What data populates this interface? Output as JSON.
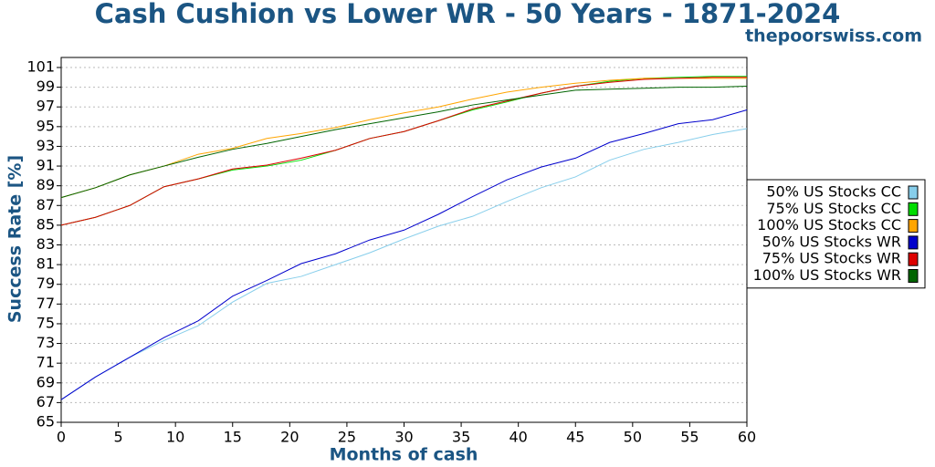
{
  "chart_data": {
    "type": "line",
    "title": "Cash Cushion vs Lower WR - 50 Years - 1871-2024",
    "subtitle": "thepoorswiss.com",
    "x_label": "Months of cash",
    "y_label": "Success Rate [%]",
    "x": [
      0,
      3,
      6,
      9,
      12,
      15,
      18,
      21,
      24,
      27,
      30,
      33,
      36,
      39,
      42,
      45,
      48,
      51,
      54,
      57,
      60
    ],
    "series": [
      {
        "name": "50% US Stocks CC",
        "color": "#87ceeb",
        "values": [
          67.3,
          69.6,
          71.6,
          73.3,
          74.8,
          77.2,
          79.1,
          79.8,
          81.0,
          82.2,
          83.6,
          84.9,
          85.9,
          87.4,
          88.8,
          89.9,
          91.6,
          92.7,
          93.4,
          94.2,
          94.8
        ]
      },
      {
        "name": "75% US Stocks CC",
        "color": "#00dd00",
        "values": [
          85.0,
          85.8,
          87.0,
          88.9,
          89.7,
          90.6,
          91.0,
          91.6,
          92.6,
          93.8,
          94.5,
          95.6,
          96.7,
          97.5,
          98.4,
          99.1,
          99.6,
          99.9,
          100.0,
          100.1,
          100.1
        ]
      },
      {
        "name": "100% US Stocks CC",
        "color": "#ffa500",
        "values": [
          87.8,
          88.8,
          90.1,
          91.0,
          92.2,
          92.8,
          93.8,
          94.3,
          94.9,
          95.7,
          96.4,
          97.0,
          97.8,
          98.5,
          99.0,
          99.4,
          99.7,
          99.9,
          99.9,
          99.9,
          99.9
        ]
      },
      {
        "name": "50% US Stocks WR",
        "color": "#0000cc",
        "values": [
          67.3,
          69.6,
          71.6,
          73.6,
          75.3,
          77.8,
          79.4,
          81.1,
          82.1,
          83.5,
          84.5,
          86.1,
          87.9,
          89.6,
          90.9,
          91.8,
          93.4,
          94.3,
          95.3,
          95.7,
          96.7
        ]
      },
      {
        "name": "75% US Stocks WR",
        "color": "#dd0000",
        "values": [
          85.0,
          85.8,
          87.0,
          88.9,
          89.7,
          90.7,
          91.1,
          91.8,
          92.6,
          93.8,
          94.5,
          95.6,
          96.8,
          97.6,
          98.4,
          99.1,
          99.5,
          99.8,
          99.9,
          100.0,
          100.0
        ]
      },
      {
        "name": "100% US Stocks WR",
        "color": "#006400",
        "values": [
          87.8,
          88.8,
          90.1,
          91.0,
          91.9,
          92.7,
          93.3,
          94.0,
          94.7,
          95.3,
          95.9,
          96.5,
          97.2,
          97.7,
          98.2,
          98.7,
          98.8,
          98.9,
          99.0,
          99.0,
          99.1
        ]
      }
    ],
    "xlim": [
      0,
      60
    ],
    "xticks": [
      0,
      5,
      10,
      15,
      20,
      25,
      30,
      35,
      40,
      45,
      50,
      55,
      60
    ],
    "ylim": [
      65,
      101
    ],
    "yticks": [
      65,
      67,
      69,
      71,
      73,
      75,
      77,
      79,
      81,
      83,
      85,
      87,
      89,
      91,
      93,
      95,
      97,
      99,
      101
    ],
    "grid": true,
    "legend": "right"
  }
}
